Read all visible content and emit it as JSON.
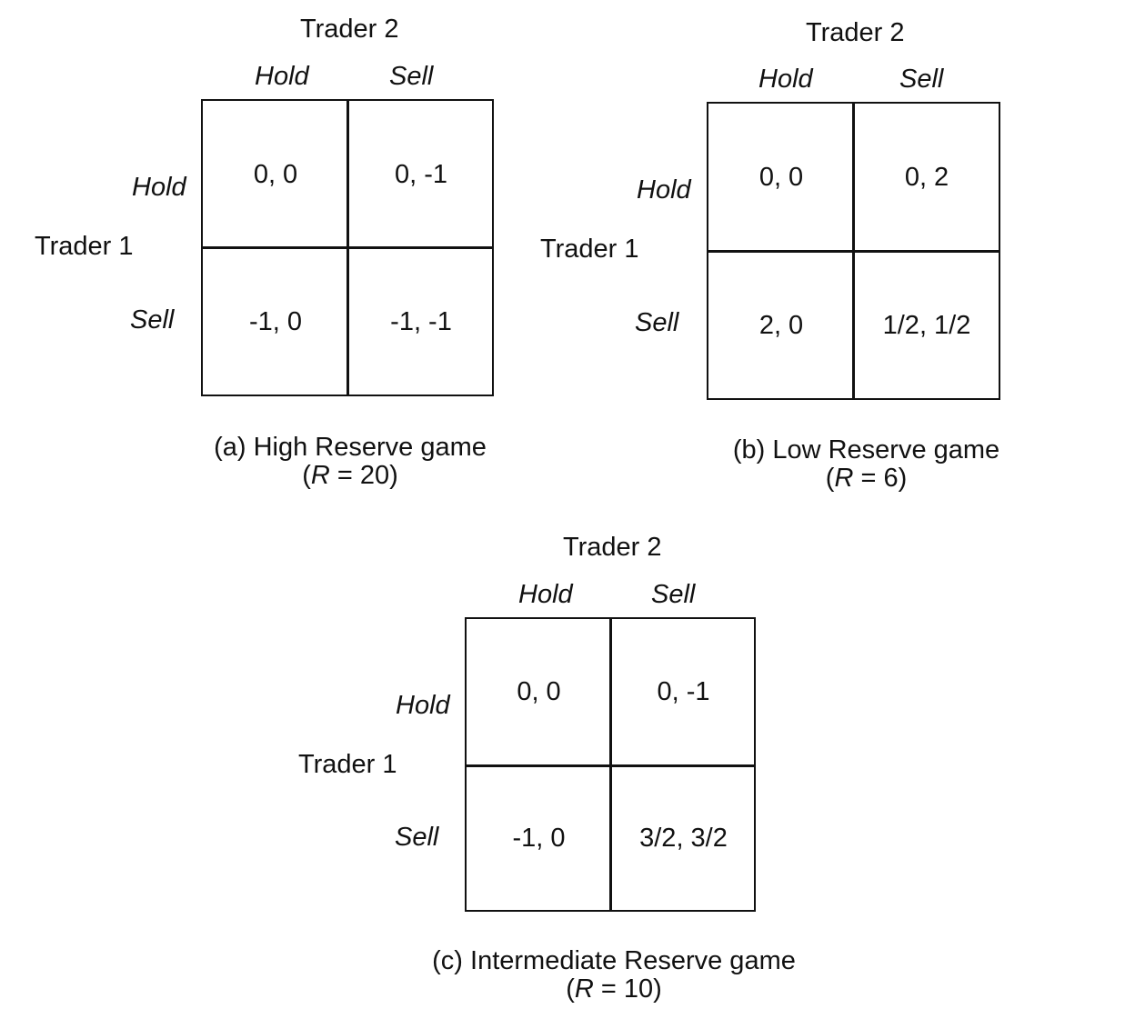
{
  "games": [
    {
      "id": "a",
      "col_player": "Trader 2",
      "row_player": "Trader 1",
      "col_strategies": [
        "Hold",
        "Sell"
      ],
      "row_strategies": [
        "Hold",
        "Sell"
      ],
      "payoffs": [
        [
          "0, 0",
          "0, -1"
        ],
        [
          "-1, 0",
          "-1, -1"
        ]
      ],
      "caption_line1": "(a)  High Reserve game",
      "caption_open": "(",
      "caption_r": "R",
      "caption_value": " = 20)"
    },
    {
      "id": "b",
      "col_player": "Trader 2",
      "row_player": "Trader 1",
      "col_strategies": [
        "Hold",
        "Sell"
      ],
      "row_strategies": [
        "Hold",
        "Sell"
      ],
      "payoffs": [
        [
          "0, 0",
          "0, 2"
        ],
        [
          "2, 0",
          "1/2, 1/2"
        ]
      ],
      "caption_line1": "(b)  Low Reserve game",
      "caption_open": "(",
      "caption_r": "R",
      "caption_value": " = 6)"
    },
    {
      "id": "c",
      "col_player": "Trader 2",
      "row_player": "Trader 1",
      "col_strategies": [
        "Hold",
        "Sell"
      ],
      "row_strategies": [
        "Hold",
        "Sell"
      ],
      "payoffs": [
        [
          "0, 0",
          "0, -1"
        ],
        [
          "-1, 0",
          "3/2, 3/2"
        ]
      ],
      "caption_line1": "(c)  Intermediate Reserve game",
      "caption_open": "(",
      "caption_r": "R",
      "caption_value": " = 10)"
    }
  ]
}
